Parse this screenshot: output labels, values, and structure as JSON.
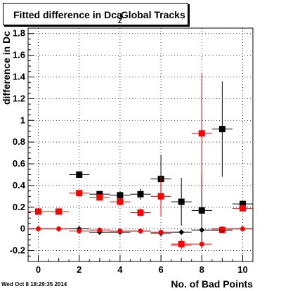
{
  "title": {
    "main": "Fitted difference in Dca",
    "sub": "Z",
    "rest": "Global Tracks"
  },
  "footer": "Wed Oct  8 18:29:35 2014",
  "chart_data": {
    "type": "scatter",
    "xlabel": "No. of Bad Points",
    "ylabel": "difference in Dc",
    "xlim": [
      -0.5,
      10.5
    ],
    "ylim": [
      -0.3,
      1.85
    ],
    "x_ticks": [
      0,
      2,
      4,
      6,
      8,
      10
    ],
    "y_ticks": [
      -0.2,
      0,
      0.2,
      0.4,
      0.6,
      0.8,
      1,
      1.2,
      1.4,
      1.6,
      1.8
    ],
    "y_tick_labels": [
      "-0.2",
      "0",
      "0.2",
      "0.4",
      "0.6",
      "0.8",
      "1",
      "1.2",
      "1.4",
      "1.6",
      "1.8"
    ],
    "grid": true,
    "series": [
      {
        "marker": "square",
        "color": "#000000",
        "size": 9,
        "x": [
          0,
          1,
          2,
          3,
          4,
          5,
          6,
          7,
          8,
          9,
          10
        ],
        "y": [
          0.16,
          0.16,
          0.5,
          0.32,
          0.31,
          0.32,
          0.46,
          0.25,
          0.17,
          0.92,
          0.23
        ],
        "yerr": [
          0.02,
          0.02,
          0.03,
          0.03,
          0.04,
          0.05,
          0.22,
          0.22,
          0.35,
          0.44,
          0.03
        ]
      },
      {
        "marker": "square",
        "color": "#ff0000",
        "size": 9,
        "x": [
          0,
          1,
          2,
          3,
          4,
          5,
          6,
          7,
          8,
          9,
          10
        ],
        "y": [
          0.16,
          0.16,
          0.33,
          0.29,
          0.25,
          0.15,
          0.3,
          -0.14,
          0.88,
          -0.01,
          0.19
        ],
        "yerr": [
          0.02,
          0.02,
          0.03,
          0.03,
          0.03,
          0.04,
          0.18,
          0.05,
          0.55,
          0.03,
          0.03
        ]
      },
      {
        "marker": "diamond",
        "color": "#000000",
        "size": 8,
        "x": [
          0,
          1,
          2,
          3,
          4,
          5,
          6,
          7,
          8,
          9,
          10
        ],
        "y": [
          0.0,
          0.0,
          0.0,
          -0.03,
          -0.03,
          -0.02,
          -0.04,
          -0.03,
          -0.01,
          -0.01,
          0.0
        ],
        "yerr": [
          0.01,
          0.01,
          0.01,
          0.01,
          0.01,
          0.01,
          0.02,
          0.02,
          0.02,
          0.02,
          0.01
        ]
      },
      {
        "marker": "circle",
        "color": "#ff0000",
        "size": 7,
        "x": [
          0,
          1,
          2,
          3,
          4,
          5,
          6,
          7,
          8,
          9,
          10
        ],
        "y": [
          0.0,
          0.0,
          -0.02,
          -0.01,
          -0.02,
          -0.02,
          -0.03,
          -0.15,
          -0.14,
          0.0,
          0.0
        ],
        "yerr": [
          0.01,
          0.01,
          0.01,
          0.01,
          0.01,
          0.01,
          0.01,
          0.02,
          0.02,
          0.01,
          0.01
        ]
      }
    ]
  }
}
